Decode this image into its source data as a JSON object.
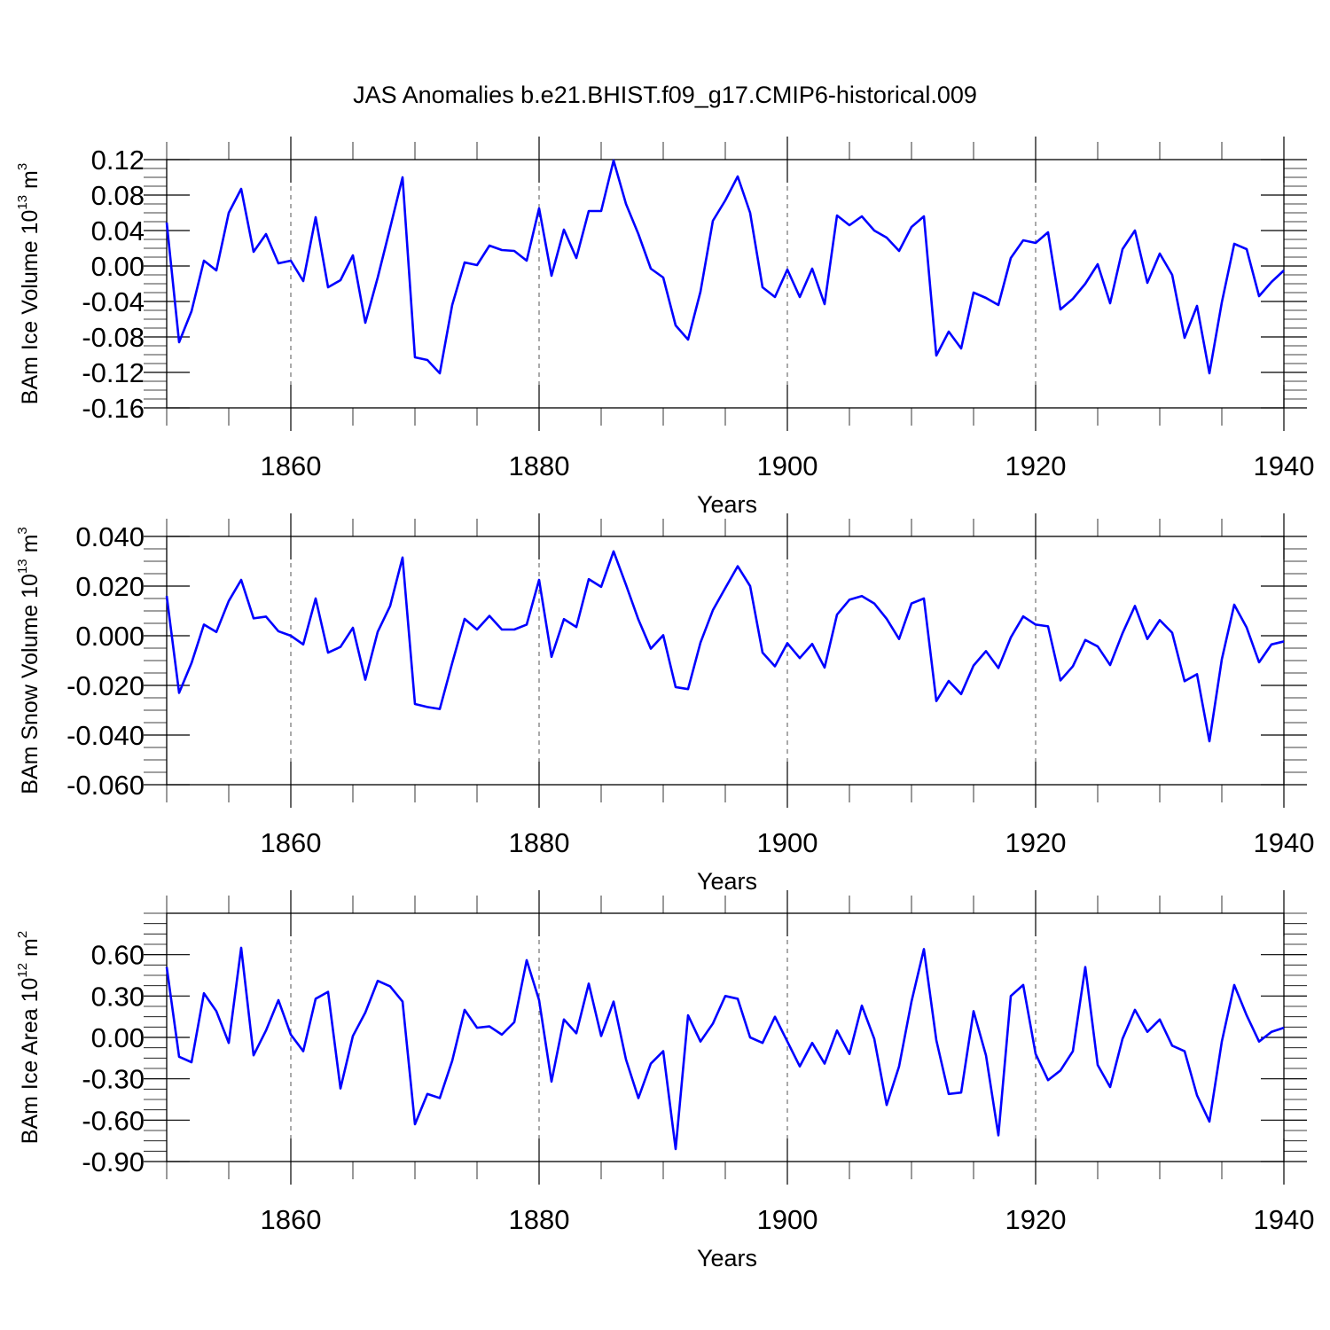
{
  "figure": {
    "title": "JAS Anomalies b.e21.BHIST.f09_g17.CMIP6-historical.009"
  },
  "colors": {
    "line": "#0000ff",
    "grid": "#555555",
    "axis": "#000000"
  },
  "chart_data": [
    {
      "type": "line",
      "ylabel": {
        "prefix": "BAm Ice Volume 10",
        "exponent": "13",
        "unit": " m",
        "unit_exponent": "3"
      },
      "xlabel": "Years",
      "xlim": [
        1850,
        1940
      ],
      "ylim": [
        -0.16,
        0.12
      ],
      "yticks": [
        "0.12",
        "0.08",
        "0.04",
        "0.00",
        "-0.04",
        "-0.08",
        "-0.12",
        "-0.16"
      ],
      "ytick_values": [
        0.12,
        0.08,
        0.04,
        0.0,
        -0.04,
        -0.08,
        -0.12,
        -0.16
      ],
      "xticks": [
        "1860",
        "1880",
        "1900",
        "1920",
        "1940"
      ],
      "xtick_values": [
        1860,
        1880,
        1900,
        1920,
        1940
      ],
      "grid": "vertical-dashed-at-major-x",
      "x_start": 1850,
      "values": [
        0.049,
        -0.086,
        -0.051,
        0.006,
        -0.005,
        0.06,
        0.087,
        0.016,
        0.036,
        0.003,
        0.006,
        -0.017,
        0.055,
        -0.024,
        -0.016,
        0.012,
        -0.064,
        -0.013,
        0.043,
        0.1,
        -0.103,
        -0.106,
        -0.121,
        -0.044,
        0.004,
        0.001,
        0.023,
        0.018,
        0.017,
        0.006,
        0.065,
        -0.011,
        0.041,
        0.009,
        0.062,
        0.062,
        0.119,
        0.07,
        0.036,
        -0.003,
        -0.013,
        -0.067,
        -0.083,
        -0.029,
        0.051,
        0.074,
        0.101,
        0.06,
        -0.024,
        -0.035,
        -0.004,
        -0.035,
        -0.003,
        -0.043,
        0.057,
        0.046,
        0.056,
        0.04,
        0.032,
        0.017,
        0.044,
        0.056,
        -0.101,
        -0.074,
        -0.093,
        -0.03,
        -0.036,
        -0.044,
        0.009,
        0.029,
        0.026,
        0.038,
        -0.049,
        -0.037,
        -0.02,
        0.002,
        -0.042,
        0.019,
        0.04,
        -0.019,
        0.014,
        -0.01,
        -0.081,
        -0.045,
        -0.121,
        -0.041,
        0.025,
        0.019,
        -0.034,
        -0.018,
        -0.005
      ]
    },
    {
      "type": "line",
      "ylabel": {
        "prefix": "BAm Snow Volume 10",
        "exponent": "13",
        "unit": " m",
        "unit_exponent": "3"
      },
      "xlabel": "Years",
      "xlim": [
        1850,
        1940
      ],
      "ylim": [
        -0.06,
        0.04
      ],
      "yticks": [
        "0.040",
        "0.020",
        "0.000",
        "-0.020",
        "-0.040",
        "-0.060"
      ],
      "ytick_values": [
        0.04,
        0.02,
        0.0,
        -0.02,
        -0.04,
        -0.06
      ],
      "xticks": [
        "1860",
        "1880",
        "1900",
        "1920",
        "1940"
      ],
      "xtick_values": [
        1860,
        1880,
        1900,
        1920,
        1940
      ],
      "grid": "vertical-dashed-at-major-x",
      "x_start": 1850,
      "values": [
        0.016,
        -0.023,
        -0.011,
        0.0045,
        0.0015,
        0.014,
        0.0225,
        0.007,
        0.0077,
        0.0018,
        0.0,
        -0.0035,
        0.015,
        -0.0068,
        -0.0045,
        0.0032,
        -0.0177,
        0.0016,
        0.012,
        0.0315,
        -0.0275,
        -0.0287,
        -0.0295,
        -0.011,
        0.0068,
        0.0025,
        0.008,
        0.0025,
        0.0025,
        0.0045,
        0.0225,
        -0.0085,
        0.0067,
        0.0035,
        0.0228,
        0.0197,
        0.034,
        0.0205,
        0.0065,
        -0.0052,
        0.0002,
        -0.0207,
        -0.0215,
        -0.0028,
        0.0103,
        0.0192,
        0.028,
        0.02,
        -0.0068,
        -0.0123,
        -0.003,
        -0.009,
        -0.0033,
        -0.0128,
        0.0085,
        0.0145,
        0.016,
        0.013,
        0.0068,
        -0.0013,
        0.013,
        0.015,
        -0.0263,
        -0.0182,
        -0.0235,
        -0.012,
        -0.0062,
        -0.013,
        -0.0007,
        0.0078,
        0.0045,
        0.0038,
        -0.018,
        -0.0123,
        -0.0017,
        -0.0043,
        -0.0118,
        0.001,
        0.012,
        -0.0013,
        0.0063,
        0.0012,
        -0.0183,
        -0.0155,
        -0.0425,
        -0.0095,
        0.0125,
        0.0033,
        -0.0107,
        -0.0035,
        -0.0023
      ]
    },
    {
      "type": "line",
      "ylabel": {
        "prefix": "BAm Ice Area 10",
        "exponent": "12",
        "unit": " m",
        "unit_exponent": "2"
      },
      "xlabel": "Years",
      "xlim": [
        1850,
        1940
      ],
      "ylim": [
        -0.9,
        0.9
      ],
      "yticks": [
        "0.60",
        "0.30",
        "0.00",
        "-0.30",
        "-0.60",
        "-0.90"
      ],
      "ytick_values": [
        0.6,
        0.3,
        0.0,
        -0.3,
        -0.6,
        -0.9
      ],
      "xticks": [
        "1860",
        "1880",
        "1900",
        "1920",
        "1940"
      ],
      "xtick_values": [
        1860,
        1880,
        1900,
        1920,
        1940
      ],
      "grid": "vertical-dashed-at-major-x",
      "x_start": 1850,
      "values": [
        0.51,
        -0.14,
        -0.18,
        0.32,
        0.19,
        -0.04,
        0.65,
        -0.13,
        0.05,
        0.27,
        0.02,
        -0.1,
        0.28,
        0.33,
        -0.37,
        0.01,
        0.18,
        0.41,
        0.37,
        0.26,
        -0.63,
        -0.41,
        -0.44,
        -0.17,
        0.2,
        0.07,
        0.08,
        0.02,
        0.11,
        0.56,
        0.27,
        -0.32,
        0.13,
        0.03,
        0.39,
        0.01,
        0.26,
        -0.16,
        -0.44,
        -0.19,
        -0.1,
        -0.81,
        0.16,
        -0.03,
        0.1,
        0.3,
        0.28,
        0.0,
        -0.04,
        0.15,
        -0.03,
        -0.21,
        -0.04,
        -0.19,
        0.05,
        -0.12,
        0.23,
        -0.01,
        -0.49,
        -0.21,
        0.26,
        0.64,
        -0.02,
        -0.41,
        -0.4,
        0.19,
        -0.13,
        -0.71,
        0.3,
        0.38,
        -0.12,
        -0.31,
        -0.24,
        -0.1,
        0.51,
        -0.2,
        -0.36,
        -0.01,
        0.2,
        0.04,
        0.13,
        -0.06,
        -0.1,
        -0.42,
        -0.61,
        -0.03,
        0.38,
        0.16,
        -0.03,
        0.04,
        0.07
      ]
    }
  ]
}
